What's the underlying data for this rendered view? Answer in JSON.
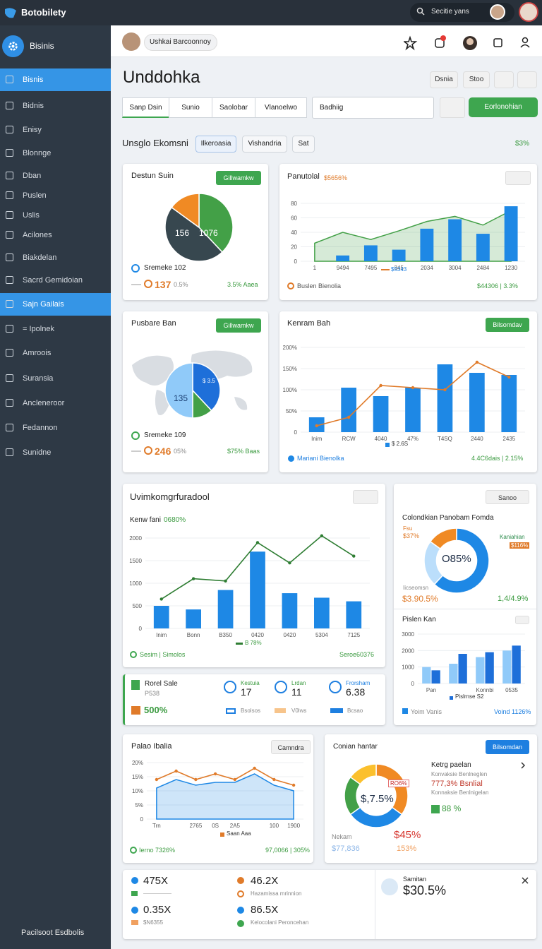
{
  "topbar": {
    "brand": "Botobilety",
    "search": "Secitie yans"
  },
  "sidebar": {
    "header": "Bisinis",
    "items": [
      "Bisnis",
      "Bidnis",
      "Enisy",
      "Blonnge",
      "Dban",
      "Puslen",
      "Uslis",
      "Acilones",
      "Biakdelan",
      "Sacrd Gemidoian",
      "Sajn Gailais",
      "= Ipolnek",
      "Amroois",
      "Suransia",
      "Ancleneroor",
      "Fedannon",
      "Sunidne"
    ],
    "active": [
      0,
      10
    ],
    "footer": "Pacilsoot Esdbolis"
  },
  "header": {
    "user": "Ushkai Barcoonnoy"
  },
  "toolbar": {
    "title": "Unddohka",
    "buttons": [
      "Dsnia",
      "Stoo"
    ],
    "tabs": [
      "Sanp Dsin",
      "Sunio",
      "Saolobar",
      "Vlanoelwo"
    ],
    "search": "Badhiig",
    "action": "Eorlonohian"
  },
  "section": {
    "title": "Unsglo Ekomsni",
    "chips": [
      "Ilkeroasia",
      "Vishandria",
      "Sat"
    ],
    "filter": "$3%"
  },
  "widgets": {
    "w1": {
      "title": "Destun Suin",
      "button": "Gillwamkw",
      "chart": {
        "type": "pie",
        "values": [
          38,
          47,
          15
        ],
        "colors": [
          "#43a047",
          "#37474f",
          "#f08a24"
        ],
        "annotations": [
          "156",
          "1076"
        ]
      },
      "legend": "Sremeke 102",
      "stat": "137",
      "stat_note": "0.5%",
      "delta": "3.5% Aaea"
    },
    "w2": {
      "title": "Panutolal",
      "badge": "$5656%",
      "chart": {
        "type": "combo",
        "categories": [
          "1",
          "9494",
          "7495",
          "345",
          "2034",
          "3004",
          "2484",
          "1230"
        ],
        "ylim": [
          0,
          80
        ],
        "yticks": [
          0,
          20,
          40,
          60,
          80
        ],
        "grid": true,
        "series": [
          {
            "kind": "area",
            "color": "#43a047",
            "values": [
              25,
              40,
              30,
              42,
              55,
              62,
              50,
              70
            ]
          },
          {
            "kind": "bar",
            "color": "#1e88e5",
            "values": [
              0,
              8,
              22,
              16,
              45,
              58,
              38,
              76
            ]
          }
        ]
      },
      "legend": "$5343",
      "footer_left": "Buslen Bienolia",
      "footer_right": "$44306 | 3.3%"
    },
    "w3": {
      "title": "Pusbare Ban",
      "button": "Gillwamkw",
      "chart": {
        "type": "pie",
        "values": [
          38,
          12,
          50
        ],
        "colors": [
          "#1e6fd9",
          "#43a047",
          "#90caf9"
        ],
        "annotations": [
          "135",
          "$ 3.5"
        ]
      },
      "legend": "Sremeke 109",
      "stat": "246",
      "stat_note": "05%",
      "delta": "$75% Baas"
    },
    "w4": {
      "title": "Kenram Bah",
      "button": "Bilsomdav",
      "chart": {
        "type": "combo",
        "categories": [
          "Inim",
          "RCW",
          "4040",
          "47%",
          "T4SQ",
          "2440",
          "2435"
        ],
        "ylim": [
          0,
          200
        ],
        "yticks": [
          0,
          {
            "value": 50,
            "label": "50%"
          },
          {
            "value": 100,
            "label": "100%"
          },
          {
            "value": 150,
            "label": "150%"
          },
          {
            "value": 200,
            "label": "200%"
          }
        ],
        "grid": true,
        "series": [
          {
            "kind": "bar",
            "color": "#1e88e5",
            "values": [
              35,
              105,
              85,
              105,
              160,
              140,
              135
            ]
          },
          {
            "kind": "line",
            "color": "#e07b2a",
            "values": [
              15,
              35,
              110,
              105,
              100,
              165,
              130
            ]
          }
        ]
      },
      "legend": "$ 2.6S",
      "footer_left": "Mariani Bienolka",
      "footer_right": "4.4C6dais | 2.15%"
    },
    "w5": {
      "title": "Uvimkomgrfuradool",
      "subtitle": "Kenw fani",
      "badge": "0680%",
      "chart": {
        "type": "combo",
        "categories": [
          "Inim",
          "Bonn",
          "B350",
          "0420",
          "0420",
          "5304",
          "7125"
        ],
        "ylim": [
          0,
          2000
        ],
        "yticks": [
          0,
          500,
          1000,
          1500,
          2000
        ],
        "grid": true,
        "series": [
          {
            "kind": "bar",
            "color": "#1e88e5",
            "values": [
              500,
              420,
              850,
              1700,
              780,
              680,
              600
            ]
          },
          {
            "kind": "line",
            "color": "#2e7d32",
            "values": [
              650,
              1100,
              1050,
              1900,
              1450,
              2050,
              1600
            ]
          }
        ]
      },
      "legend": "B 78%",
      "footer_left": "Sesim | Simolos",
      "footer_right": "Seroe60376"
    },
    "w6": {
      "button": "Sanoo",
      "title": "Colondkian Panobam Fomda",
      "chart": {
        "type": "donut",
        "values": [
          62,
          23,
          15
        ],
        "colors": [
          "#1e88e5",
          "#bbdefb",
          "#f08a24"
        ],
        "center": "O85%"
      },
      "labels": [
        "Fsu",
        "$37%",
        "Kaniahian",
        "$116%",
        "Iicseomsn"
      ],
      "stat_left": "$3.90.5%",
      "stat_right": "1,4/4.9%"
    },
    "w7": {
      "title": "Pislen Kan",
      "chart": {
        "type": "combo",
        "categories": [
          "Pan",
          null,
          "Konnbi",
          "0535"
        ],
        "ylim": [
          0,
          3000
        ],
        "yticks": [
          0,
          1000,
          2000,
          3000
        ],
        "grid": true,
        "series": [
          {
            "kind": "bar",
            "color": "#90caf9",
            "values": [
              1000,
              1200,
              1600,
              2000
            ]
          },
          {
            "kind": "bar",
            "color": "#1e6fd9",
            "values": [
              800,
              1800,
              1900,
              2300
            ]
          }
        ]
      },
      "legend": "Pislrnse S2",
      "footer_left": "Yoim Vanis",
      "footer_right": "Voind 1126%"
    },
    "w8": {
      "title": "Rorel Sale",
      "subtitle": "P538",
      "value": "500%",
      "kpis": [
        {
          "label": "Kestuia",
          "value": "17",
          "note": "Bsolsos"
        },
        {
          "label": "Lrdan",
          "value": "11",
          "note": "V0lws"
        },
        {
          "label": "Frorsham",
          "value": "6.38",
          "note": "Bcsao"
        }
      ]
    },
    "w9": {
      "title": "Palao Ibalia",
      "button": "Camndra",
      "chart": {
        "type": "combo",
        "categories": [
          "Trn",
          null,
          "2765",
          "0S",
          "2A5",
          null,
          "100",
          "1900"
        ],
        "ylim": [
          0,
          20
        ],
        "yticks": [
          0,
          {
            "value": 5,
            "label": "5%"
          },
          {
            "value": 10,
            "label": "10%"
          },
          {
            "value": 15,
            "label": "15%"
          },
          {
            "value": 20,
            "label": "20%"
          }
        ],
        "grid": true,
        "series": [
          {
            "kind": "area",
            "color": "#1e88e5",
            "values": [
              11,
              14,
              12,
              13,
              13,
              16,
              12,
              10
            ]
          },
          {
            "kind": "line",
            "color": "#e07b2a",
            "values": [
              14,
              17,
              14,
              16,
              14,
              18,
              14,
              12
            ]
          }
        ]
      },
      "legend": "Saan Aaa",
      "footer_left": "Ierno 7326%",
      "footer_right": "97,0066 | 305%"
    },
    "w10": {
      "title": "Conian hantar",
      "button": "Bilsomdan",
      "chart": {
        "type": "donut",
        "values": [
          35,
          30,
          20,
          15
        ],
        "colors": [
          "#f08a24",
          "#1e88e5",
          "#43a047",
          "#fbc02d"
        ],
        "center": "$,7.5%"
      },
      "tag": "RO6%",
      "list_title": "Ketrg paelan",
      "list": [
        "Konvaksie Benlneglen",
        "777,3% Bsnlial",
        "Konnaksie Benlnigelan"
      ],
      "stat": "88 %",
      "left_label": "Nekam",
      "left_value": "$77,836",
      "right_value": "$45%",
      "right_note": "153%"
    },
    "w11": {
      "kpis": [
        {
          "value": "475X"
        },
        {
          "value": "46.2X",
          "note": "Hazamissa mrinnion"
        },
        {
          "value": "0.35X",
          "note": "$N6355"
        },
        {
          "value": "86.5X",
          "note": "Kelocolani Peroncehan"
        }
      ],
      "side_label": "Samitan",
      "side_value": "$30.5%"
    }
  }
}
